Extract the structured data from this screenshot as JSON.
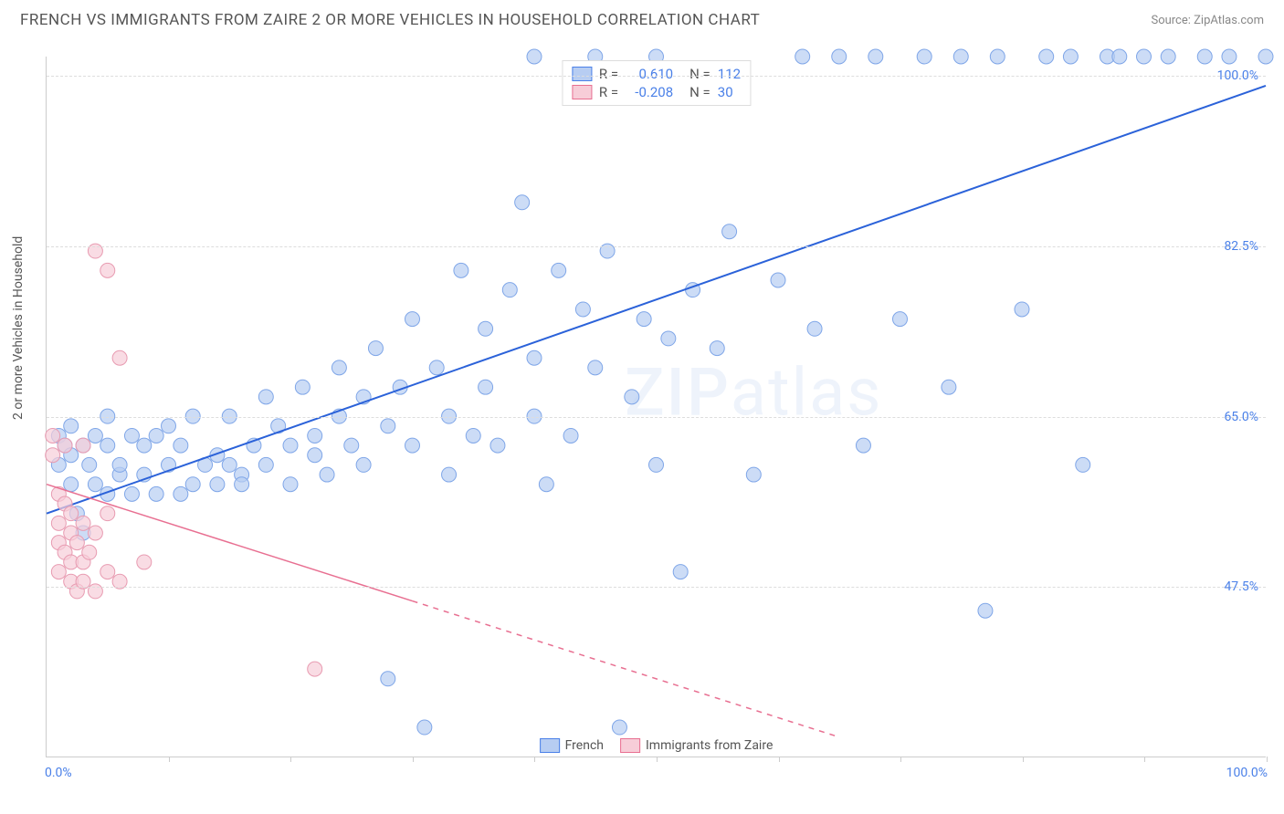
{
  "header": {
    "title": "FRENCH VS IMMIGRANTS FROM ZAIRE 2 OR MORE VEHICLES IN HOUSEHOLD CORRELATION CHART",
    "source": "Source: ZipAtlas.com"
  },
  "chart": {
    "type": "scatter",
    "ylabel": "2 or more Vehicles in Household",
    "watermark": "ZIPatlas",
    "background_color": "#ffffff",
    "grid_color": "#dddddd",
    "axis_color": "#cccccc",
    "xlim": [
      0,
      100
    ],
    "ylim": [
      30,
      102
    ],
    "xtick_positions": [
      10,
      20,
      30,
      40,
      50,
      60,
      70,
      80,
      90,
      100
    ],
    "yticks": [
      {
        "value": 47.5,
        "label": "47.5%"
      },
      {
        "value": 65.0,
        "label": "65.0%"
      },
      {
        "value": 82.5,
        "label": "82.5%"
      },
      {
        "value": 100.0,
        "label": "100.0%"
      }
    ],
    "xaxis_labels": {
      "left": "0.0%",
      "right": "100.0%"
    },
    "legend_top": {
      "rows": [
        {
          "swatch_fill": "#b7cdf2",
          "swatch_border": "#4a80e8",
          "r_label": "R =",
          "r_value": "0.610",
          "n_label": "N =",
          "n_value": "112",
          "value_color": "#4a80e8"
        },
        {
          "swatch_fill": "#f7cdd8",
          "swatch_border": "#e86f91",
          "r_label": "R =",
          "r_value": "-0.208",
          "n_label": "N =",
          "n_value": "30",
          "value_color": "#4a80e8"
        }
      ]
    },
    "legend_bottom": {
      "items": [
        {
          "swatch_fill": "#b7cdf2",
          "swatch_border": "#4a80e8",
          "label": "French"
        },
        {
          "swatch_fill": "#f7cdd8",
          "swatch_border": "#e86f91",
          "label": "Immigrants from Zaire"
        }
      ]
    },
    "series": [
      {
        "name": "French",
        "marker_fill": "#b7cdf2",
        "marker_stroke": "#7fa6e8",
        "marker_opacity": 0.7,
        "marker_radius": 8,
        "trend": {
          "x1": 0,
          "y1": 55,
          "x2": 100,
          "y2": 99,
          "color": "#2b62d9",
          "width": 2,
          "dash_after_x": null
        },
        "points": [
          [
            1,
            63
          ],
          [
            1,
            60
          ],
          [
            1.5,
            62
          ],
          [
            2,
            61
          ],
          [
            2,
            58
          ],
          [
            2,
            64
          ],
          [
            2.5,
            55
          ],
          [
            3,
            53
          ],
          [
            3,
            62
          ],
          [
            3.5,
            60
          ],
          [
            4,
            63
          ],
          [
            4,
            58
          ],
          [
            5,
            62
          ],
          [
            5,
            57
          ],
          [
            5,
            65
          ],
          [
            6,
            59
          ],
          [
            6,
            60
          ],
          [
            7,
            57
          ],
          [
            7,
            63
          ],
          [
            8,
            62
          ],
          [
            8,
            59
          ],
          [
            9,
            63
          ],
          [
            9,
            57
          ],
          [
            10,
            60
          ],
          [
            10,
            64
          ],
          [
            11,
            57
          ],
          [
            11,
            62
          ],
          [
            12,
            58
          ],
          [
            12,
            65
          ],
          [
            13,
            60
          ],
          [
            14,
            61
          ],
          [
            14,
            58
          ],
          [
            15,
            65
          ],
          [
            15,
            60
          ],
          [
            16,
            59
          ],
          [
            16,
            58
          ],
          [
            17,
            62
          ],
          [
            18,
            67
          ],
          [
            18,
            60
          ],
          [
            19,
            64
          ],
          [
            20,
            62
          ],
          [
            20,
            58
          ],
          [
            21,
            68
          ],
          [
            22,
            61
          ],
          [
            22,
            63
          ],
          [
            23,
            59
          ],
          [
            24,
            65
          ],
          [
            24,
            70
          ],
          [
            25,
            62
          ],
          [
            26,
            67
          ],
          [
            26,
            60
          ],
          [
            27,
            72
          ],
          [
            28,
            64
          ],
          [
            28,
            38
          ],
          [
            29,
            68
          ],
          [
            30,
            62
          ],
          [
            30,
            75
          ],
          [
            31,
            33
          ],
          [
            32,
            70
          ],
          [
            33,
            59
          ],
          [
            33,
            65
          ],
          [
            34,
            80
          ],
          [
            35,
            63
          ],
          [
            36,
            74
          ],
          [
            36,
            68
          ],
          [
            37,
            62
          ],
          [
            38,
            78
          ],
          [
            39,
            87
          ],
          [
            40,
            65
          ],
          [
            40,
            71
          ],
          [
            41,
            58
          ],
          [
            42,
            80
          ],
          [
            43,
            63
          ],
          [
            44,
            76
          ],
          [
            45,
            70
          ],
          [
            46,
            82
          ],
          [
            47,
            33
          ],
          [
            48,
            67
          ],
          [
            49,
            75
          ],
          [
            50,
            60
          ],
          [
            51,
            73
          ],
          [
            52,
            49
          ],
          [
            53,
            78
          ],
          [
            55,
            72
          ],
          [
            56,
            84
          ],
          [
            58,
            59
          ],
          [
            60,
            79
          ],
          [
            62,
            102
          ],
          [
            63,
            74
          ],
          [
            65,
            102
          ],
          [
            67,
            62
          ],
          [
            68,
            102
          ],
          [
            70,
            75
          ],
          [
            72,
            102
          ],
          [
            74,
            68
          ],
          [
            75,
            102
          ],
          [
            77,
            45
          ],
          [
            78,
            102
          ],
          [
            80,
            76
          ],
          [
            82,
            102
          ],
          [
            84,
            102
          ],
          [
            85,
            60
          ],
          [
            87,
            102
          ],
          [
            88,
            102
          ],
          [
            90,
            102
          ],
          [
            92,
            102
          ],
          [
            95,
            102
          ],
          [
            97,
            102
          ],
          [
            100,
            102
          ],
          [
            40,
            102
          ],
          [
            45,
            102
          ],
          [
            50,
            102
          ]
        ]
      },
      {
        "name": "Immigrants from Zaire",
        "marker_fill": "#f7cdd8",
        "marker_stroke": "#e89bb1",
        "marker_opacity": 0.7,
        "marker_radius": 8,
        "trend": {
          "x1": 0,
          "y1": 58,
          "x2": 65,
          "y2": 32,
          "color": "#e86f91",
          "width": 1.5,
          "dash_after_x": 30
        },
        "points": [
          [
            0.5,
            63
          ],
          [
            0.5,
            61
          ],
          [
            1,
            54
          ],
          [
            1,
            52
          ],
          [
            1,
            57
          ],
          [
            1,
            49
          ],
          [
            1.5,
            56
          ],
          [
            1.5,
            51
          ],
          [
            1.5,
            62
          ],
          [
            2,
            53
          ],
          [
            2,
            50
          ],
          [
            2,
            55
          ],
          [
            2,
            48
          ],
          [
            2.5,
            52
          ],
          [
            2.5,
            47
          ],
          [
            3,
            54
          ],
          [
            3,
            50
          ],
          [
            3,
            48
          ],
          [
            3,
            62
          ],
          [
            3.5,
            51
          ],
          [
            4,
            47
          ],
          [
            4,
            53
          ],
          [
            4,
            82
          ],
          [
            5,
            49
          ],
          [
            5,
            80
          ],
          [
            5,
            55
          ],
          [
            6,
            71
          ],
          [
            6,
            48
          ],
          [
            8,
            50
          ],
          [
            22,
            39
          ]
        ]
      }
    ]
  }
}
